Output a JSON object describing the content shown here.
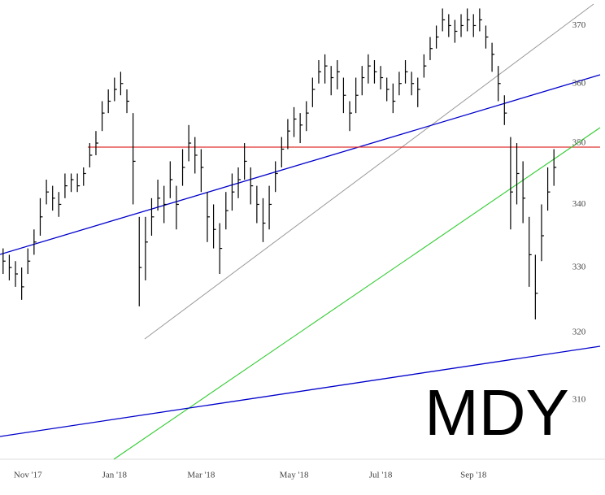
{
  "chart_data": {
    "type": "ohlc",
    "title": "MDY",
    "categories": [
      null,
      null,
      null,
      null,
      "Nov '17",
      null,
      null,
      null,
      null,
      null,
      null,
      null,
      null,
      null,
      null,
      null,
      null,
      null,
      "Jan '18",
      null,
      null,
      null,
      null,
      null,
      null,
      null,
      null,
      null,
      null,
      null,
      null,
      null,
      "Mar '18",
      null,
      null,
      null,
      null,
      null,
      null,
      null,
      null,
      null,
      null,
      null,
      null,
      null,
      null,
      "May '18",
      null,
      null,
      null,
      null,
      null,
      null,
      null,
      null,
      null,
      null,
      null,
      null,
      null,
      "Jul '18",
      null,
      null,
      null,
      null,
      null,
      null,
      null,
      null,
      null,
      null,
      null,
      null,
      null,
      null,
      "Sep '18",
      null,
      null,
      null,
      null,
      null,
      null,
      null,
      null,
      null,
      null,
      null,
      null,
      null
    ],
    "high": [
      333,
      332,
      331,
      330,
      333,
      336,
      341,
      344,
      343,
      342,
      345,
      345,
      345,
      346,
      350,
      352,
      357,
      359,
      361,
      362,
      359,
      355,
      338,
      338,
      341,
      344,
      343,
      347,
      343,
      349,
      353,
      351,
      349,
      342,
      340,
      337,
      342,
      345,
      346,
      350,
      346,
      343,
      341,
      343,
      347,
      351,
      354,
      356,
      355,
      357,
      361,
      364,
      365,
      363,
      364,
      361,
      357,
      361,
      363,
      365,
      364,
      363,
      361,
      360,
      362,
      364,
      362,
      361,
      365,
      368,
      370,
      373,
      372,
      371,
      372,
      373,
      372,
      373,
      370,
      367,
      363,
      358,
      351,
      350,
      347,
      338,
      332,
      340,
      346,
      349
    ],
    "low": [
      329,
      328,
      327,
      325,
      329,
      332,
      335,
      340,
      339,
      338,
      341,
      342,
      342,
      343,
      346,
      348,
      352,
      355,
      357,
      358,
      355,
      340,
      324,
      328,
      335,
      339,
      337,
      341,
      336,
      343,
      347,
      345,
      342,
      334,
      333,
      329,
      336,
      339,
      341,
      344,
      340,
      337,
      334,
      336,
      342,
      346,
      349,
      351,
      350,
      352,
      356,
      360,
      360,
      358,
      359,
      355,
      352,
      355,
      358,
      360,
      360,
      359,
      357,
      355,
      358,
      360,
      358,
      356,
      361,
      364,
      366,
      369,
      368,
      367,
      368,
      369,
      368,
      369,
      366,
      362,
      357,
      353,
      336,
      340,
      337,
      327,
      322,
      331,
      339,
      343
    ],
    "close": [
      331,
      330,
      329,
      327,
      331,
      334,
      338,
      342,
      341,
      340,
      343,
      344,
      343,
      345,
      348,
      350,
      355,
      357,
      359,
      360,
      357,
      347,
      330,
      334,
      338,
      341,
      340,
      344,
      340,
      346,
      350,
      348,
      346,
      338,
      336,
      333,
      339,
      342,
      344,
      347,
      343,
      340,
      337,
      340,
      345,
      349,
      352,
      354,
      353,
      355,
      359,
      362,
      363,
      361,
      362,
      358,
      355,
      358,
      361,
      363,
      362,
      361,
      359,
      357,
      360,
      362,
      360,
      359,
      363,
      366,
      368,
      371,
      370,
      369,
      370,
      371,
      370,
      371,
      368,
      365,
      360,
      355,
      342,
      345,
      341,
      332,
      326,
      335,
      342,
      346
    ],
    "color": "#000000",
    "log": true,
    "ylim": [
      301.4,
      374.5
    ],
    "yticks": [
      310,
      320,
      330,
      340,
      350,
      360,
      370
    ]
  }
}
